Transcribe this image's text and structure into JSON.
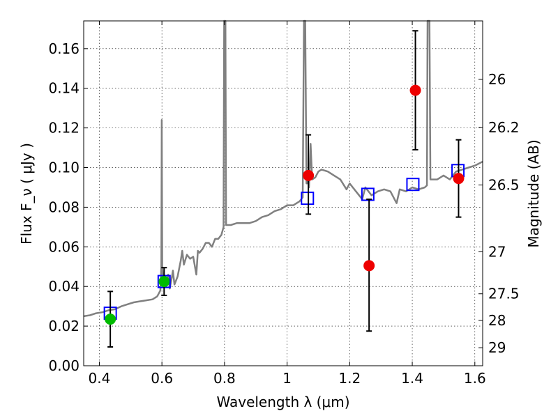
{
  "chart_data": {
    "type": "scatter",
    "xlabel": "Wavelength  λ (μm)",
    "ylabel": "Flux  F_ν  ( μJy )",
    "y2label": "Magnitude (AB)",
    "xlim": [
      0.35,
      1.625
    ],
    "ylim": [
      0.0,
      0.174
    ],
    "grid": true,
    "x_ticks": [
      0.4,
      0.6,
      0.8,
      1.0,
      1.2,
      1.4,
      1.6
    ],
    "x_tick_labels": [
      "0.4",
      "0.6",
      "0.8",
      "1",
      "1.2",
      "1.4",
      "1.6"
    ],
    "y_ticks": [
      0.0,
      0.02,
      0.04,
      0.06,
      0.08,
      0.1,
      0.12,
      0.14,
      0.16
    ],
    "y_tick_labels": [
      "0.00",
      "0.02",
      "0.04",
      "0.06",
      "0.08",
      "0.10",
      "0.12",
      "0.14",
      "0.16"
    ],
    "mag_ticks": [
      {
        "label": "26",
        "flux": 0.1445
      },
      {
        "label": "26.2",
        "flux": 0.1202
      },
      {
        "label": "26.5",
        "flux": 0.0912
      },
      {
        "label": "27",
        "flux": 0.0575
      },
      {
        "label": "27.5",
        "flux": 0.0363
      },
      {
        "label": "28",
        "flux": 0.0229
      },
      {
        "label": "29",
        "flux": 0.0091
      }
    ],
    "colors": {
      "spectrum": "#808080",
      "model": "#0000ff",
      "green": "#00bb00",
      "red": "#ee0000",
      "errorbar": "#000000"
    },
    "spectrum": [
      [
        0.35,
        0.025
      ],
      [
        0.37,
        0.0255
      ],
      [
        0.39,
        0.0265
      ],
      [
        0.41,
        0.027
      ],
      [
        0.43,
        0.028
      ],
      [
        0.45,
        0.0285
      ],
      [
        0.47,
        0.03
      ],
      [
        0.49,
        0.031
      ],
      [
        0.51,
        0.032
      ],
      [
        0.53,
        0.0325
      ],
      [
        0.55,
        0.033
      ],
      [
        0.57,
        0.0335
      ],
      [
        0.585,
        0.035
      ],
      [
        0.595,
        0.038
      ],
      [
        0.598,
        0.05
      ],
      [
        0.5995,
        0.124
      ],
      [
        0.601,
        0.05
      ],
      [
        0.605,
        0.04
      ],
      [
        0.615,
        0.04
      ],
      [
        0.62,
        0.046
      ],
      [
        0.625,
        0.039
      ],
      [
        0.63,
        0.043
      ],
      [
        0.635,
        0.048
      ],
      [
        0.64,
        0.041
      ],
      [
        0.65,
        0.045
      ],
      [
        0.66,
        0.053
      ],
      [
        0.665,
        0.058
      ],
      [
        0.67,
        0.051
      ],
      [
        0.68,
        0.056
      ],
      [
        0.69,
        0.054
      ],
      [
        0.7,
        0.055
      ],
      [
        0.71,
        0.046
      ],
      [
        0.715,
        0.058
      ],
      [
        0.72,
        0.057
      ],
      [
        0.73,
        0.059
      ],
      [
        0.74,
        0.062
      ],
      [
        0.75,
        0.062
      ],
      [
        0.76,
        0.06
      ],
      [
        0.77,
        0.064
      ],
      [
        0.78,
        0.064
      ],
      [
        0.79,
        0.066
      ],
      [
        0.797,
        0.07
      ],
      [
        0.799,
        0.174
      ],
      [
        0.803,
        0.174
      ],
      [
        0.805,
        0.071
      ],
      [
        0.82,
        0.071
      ],
      [
        0.84,
        0.072
      ],
      [
        0.86,
        0.072
      ],
      [
        0.88,
        0.072
      ],
      [
        0.9,
        0.073
      ],
      [
        0.92,
        0.075
      ],
      [
        0.94,
        0.076
      ],
      [
        0.96,
        0.078
      ],
      [
        0.98,
        0.079
      ],
      [
        1.0,
        0.081
      ],
      [
        1.02,
        0.081
      ],
      [
        1.04,
        0.083
      ],
      [
        1.05,
        0.085
      ],
      [
        1.054,
        0.174
      ],
      [
        1.058,
        0.174
      ],
      [
        1.062,
        0.092
      ],
      [
        1.066,
        0.093
      ],
      [
        1.07,
        0.09
      ],
      [
        1.075,
        0.112
      ],
      [
        1.08,
        0.094
      ],
      [
        1.09,
        0.095
      ],
      [
        1.1,
        0.098
      ],
      [
        1.11,
        0.099
      ],
      [
        1.13,
        0.098
      ],
      [
        1.15,
        0.096
      ],
      [
        1.17,
        0.094
      ],
      [
        1.19,
        0.089
      ],
      [
        1.2,
        0.092
      ],
      [
        1.21,
        0.09
      ],
      [
        1.22,
        0.088
      ],
      [
        1.23,
        0.086
      ],
      [
        1.24,
        0.084
      ],
      [
        1.25,
        0.09
      ],
      [
        1.27,
        0.086
      ],
      [
        1.29,
        0.088
      ],
      [
        1.31,
        0.089
      ],
      [
        1.33,
        0.088
      ],
      [
        1.35,
        0.082
      ],
      [
        1.36,
        0.089
      ],
      [
        1.38,
        0.088
      ],
      [
        1.4,
        0.09
      ],
      [
        1.42,
        0.089
      ],
      [
        1.44,
        0.09
      ],
      [
        1.447,
        0.091
      ],
      [
        1.449,
        0.174
      ],
      [
        1.455,
        0.174
      ],
      [
        1.458,
        0.094
      ],
      [
        1.48,
        0.094
      ],
      [
        1.5,
        0.096
      ],
      [
        1.52,
        0.094
      ],
      [
        1.54,
        0.098
      ],
      [
        1.56,
        0.099
      ],
      [
        1.58,
        0.1
      ],
      [
        1.6,
        0.101
      ],
      [
        1.625,
        0.103
      ]
    ],
    "model_points": [
      {
        "x": 0.435,
        "y": 0.0265
      },
      {
        "x": 0.607,
        "y": 0.0425
      },
      {
        "x": 1.065,
        "y": 0.0845
      },
      {
        "x": 1.258,
        "y": 0.0865
      },
      {
        "x": 1.402,
        "y": 0.0915
      },
      {
        "x": 1.546,
        "y": 0.0985
      }
    ],
    "green_points": [
      {
        "x": 0.435,
        "y": 0.0235,
        "err_low": 0.0095,
        "err_high": 0.0375
      },
      {
        "x": 0.607,
        "y": 0.0425,
        "err_low": 0.0355,
        "err_high": 0.0495
      }
    ],
    "red_points": [
      {
        "x": 1.068,
        "y": 0.096,
        "err_low": 0.0765,
        "err_high": 0.1165
      },
      {
        "x": 1.262,
        "y": 0.0505,
        "err_low": 0.0175,
        "err_high": 0.084
      },
      {
        "x": 1.41,
        "y": 0.139,
        "err_low": 0.109,
        "err_high": 0.169
      },
      {
        "x": 1.548,
        "y": 0.0945,
        "err_low": 0.075,
        "err_high": 0.114
      }
    ]
  }
}
